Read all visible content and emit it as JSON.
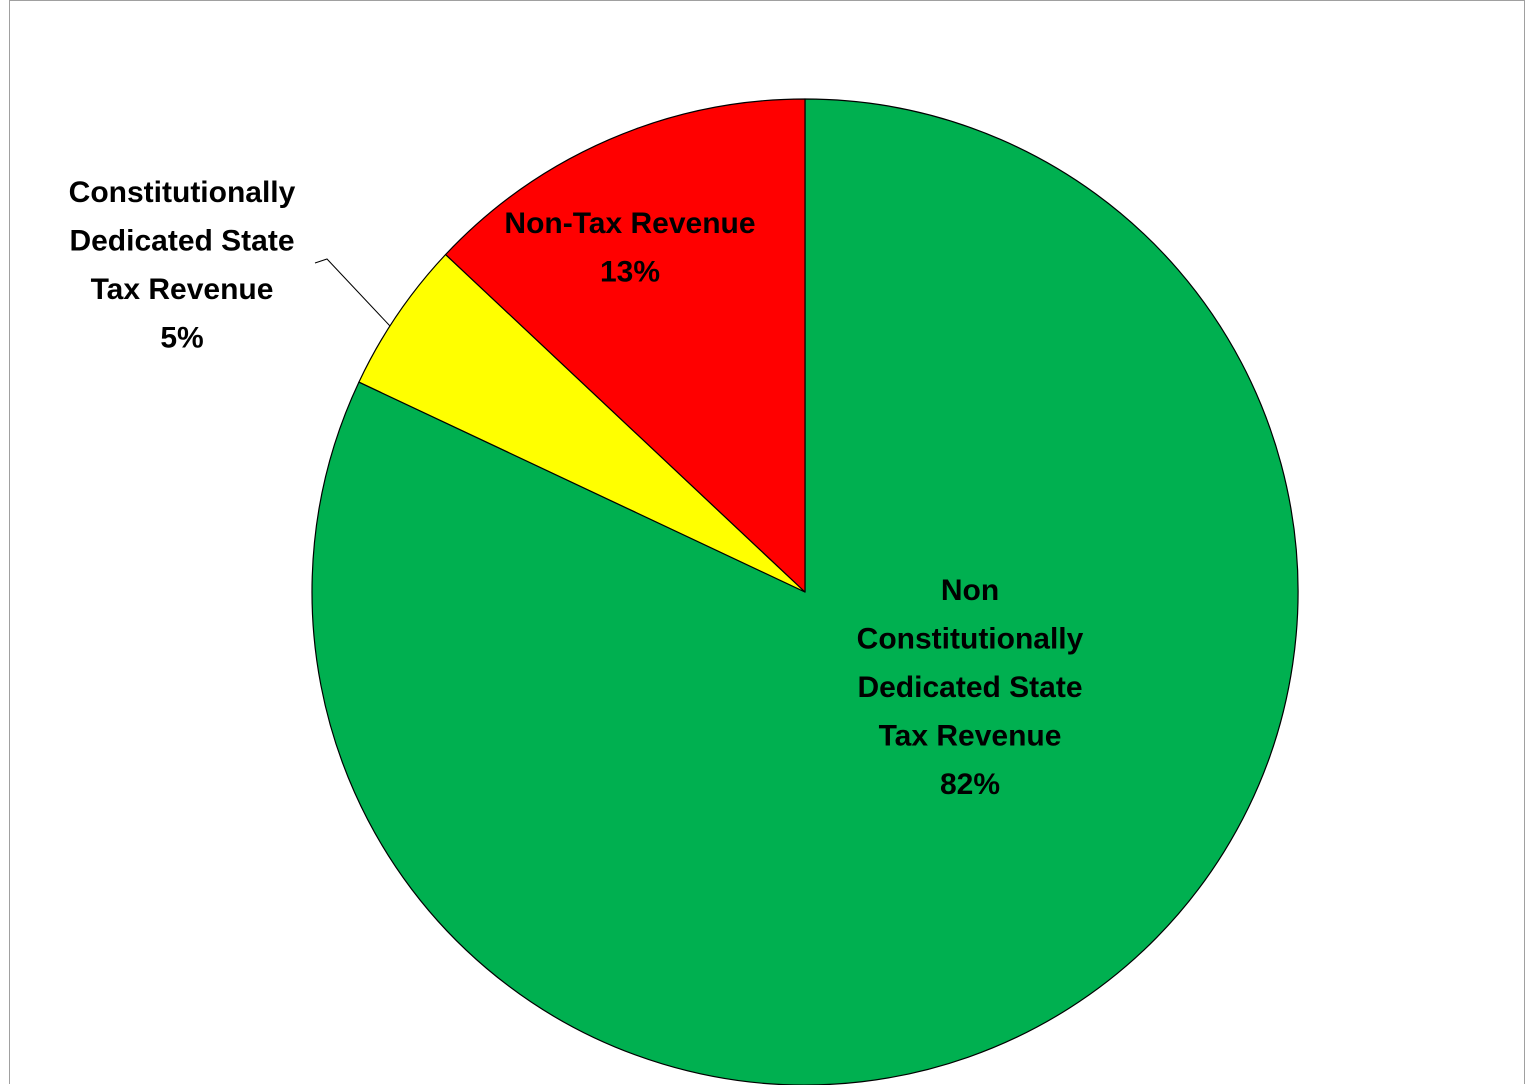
{
  "chart_data": {
    "type": "pie",
    "start_angle_deg": 0,
    "direction": "clockwise",
    "slices": [
      {
        "label_lines": [
          "Non",
          "Constitutionally",
          "Dedicated State",
          "Tax Revenue"
        ],
        "percent_label": "82%",
        "value": 82,
        "color": "#00b050"
      },
      {
        "label_lines": [
          "Constitutionally",
          "Dedicated State",
          "Tax Revenue"
        ],
        "percent_label": "5%",
        "value": 5,
        "color": "#ffff00"
      },
      {
        "label_lines": [
          "Non-Tax Revenue"
        ],
        "percent_label": "13%",
        "value": 13,
        "color": "#ff0000"
      }
    ]
  }
}
